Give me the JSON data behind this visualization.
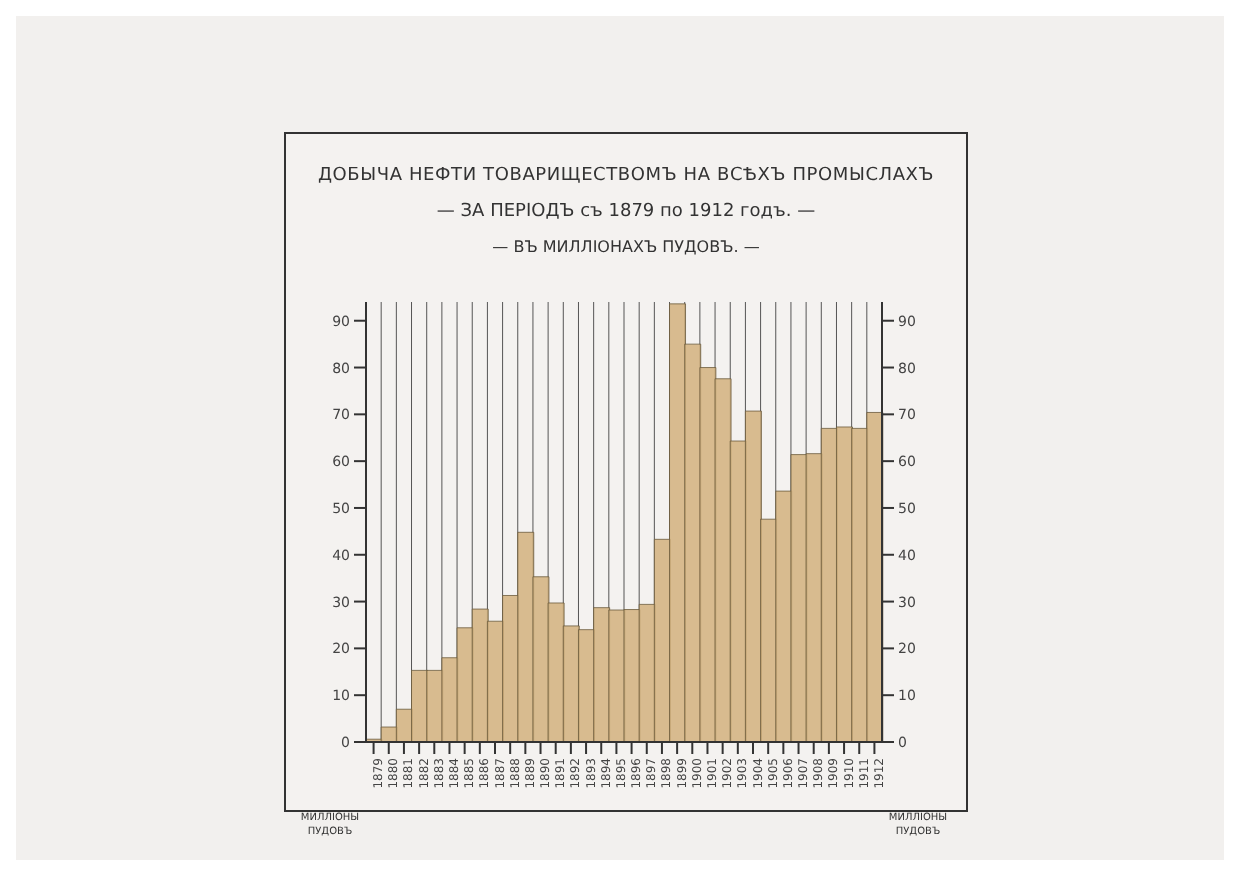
{
  "chart_data": {
    "type": "bar",
    "title": "ДОБЫЧА НЕФТИ ТОВАРИЩЕСТВОМЪ НА ВСѢХЪ ПРОМЫСЛАХЪ",
    "subtitle": "— ЗА ПЕРIОДЪ съ 1879 по 1912 годъ. —",
    "annotations": [
      "— ВЪ МИЛЛIОНАХЪ ПУДОВЪ. —"
    ],
    "ylabel": "МИЛЛIОНЫ ПУДОВЪ",
    "y2label": "МИЛЛIОНЫ ПУДОВЪ",
    "categories": [
      "1879",
      "1880",
      "1881",
      "1882",
      "1883",
      "1884",
      "1885",
      "1886",
      "1887",
      "1888",
      "1889",
      "1890",
      "1891",
      "1892",
      "1893",
      "1894",
      "1895",
      "1896",
      "1897",
      "1898",
      "1899",
      "1900",
      "1901",
      "1902",
      "1903",
      "1904",
      "1905",
      "1906",
      "1907",
      "1908",
      "1909",
      "1910",
      "1911",
      "1912"
    ],
    "values": [
      0.6,
      3.2,
      7,
      15.3,
      15.3,
      18,
      24.4,
      28.4,
      25.8,
      31.3,
      44.8,
      35.3,
      29.7,
      24.8,
      24,
      28.7,
      28.2,
      28.3,
      29.4,
      43.3,
      93.6,
      85,
      80,
      77.6,
      64.3,
      70.7,
      47.6,
      53.6,
      61.4,
      61.6,
      67,
      67.3,
      67,
      70.4
    ],
    "color": "#d2b17e",
    "ylim": [
      0,
      94
    ],
    "yticks": [
      0,
      10,
      20,
      30,
      40,
      50,
      60,
      70,
      80,
      90
    ],
    "y2lim": [
      0,
      94
    ],
    "y2ticks": [
      0,
      10,
      20,
      30,
      40,
      50,
      60,
      70,
      80,
      90
    ],
    "grid": true
  }
}
